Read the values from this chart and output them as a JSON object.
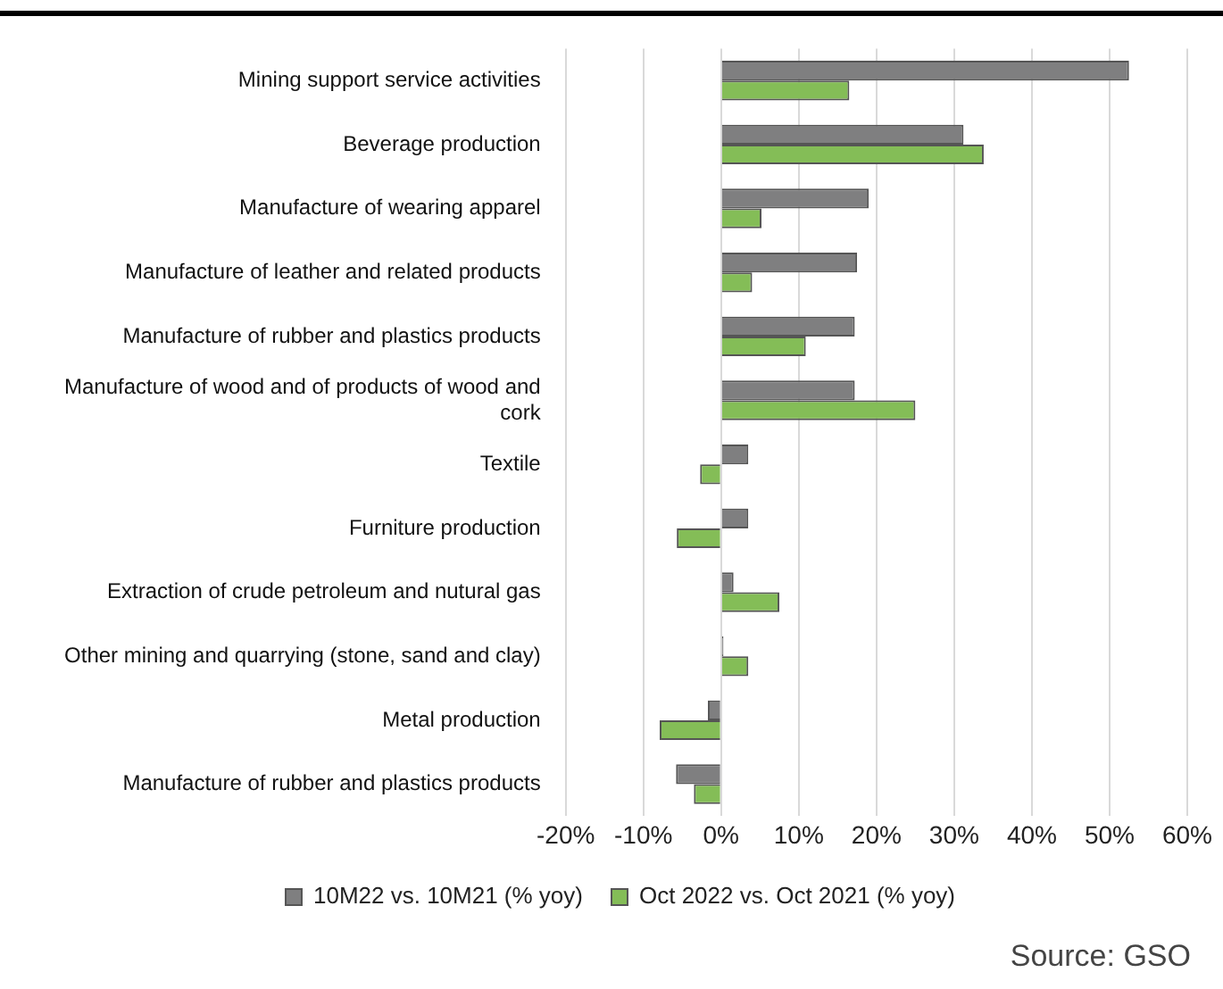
{
  "chart_data": {
    "type": "bar",
    "orientation": "horizontal",
    "categories": [
      "Mining support service activities",
      "Beverage production",
      "Manufacture of wearing apparel",
      "Manufacture of leather and related products",
      "Manufacture of rubber and plastics products",
      "Manufacture of wood and of products of wood and cork",
      "Textile",
      "Furniture production",
      "Extraction of crude petroleum and nutural gas",
      "Other mining and quarrying (stone, sand and clay)",
      "Metal production",
      "Manufacture of rubber and plastics products"
    ],
    "series": [
      {
        "name": "10M22 vs. 10M21 (% yoy)",
        "color": "#7f7f80",
        "values": [
          52.5,
          31.2,
          19,
          17.5,
          17.2,
          17.2,
          3.5,
          3.5,
          1.6,
          0.3,
          -1.7,
          -5.8
        ]
      },
      {
        "name": "Oct 2022 vs. Oct 2021 (% yoy)",
        "color": "#84bd57",
        "values": [
          16.5,
          33.8,
          5.2,
          4,
          10.9,
          25,
          -2.7,
          -5.7,
          7.5,
          3.5,
          -7.9,
          -3.5
        ]
      }
    ],
    "xlim": [
      -20,
      60
    ],
    "xticks": [
      {
        "value": -20,
        "label": "-20%"
      },
      {
        "value": -10,
        "label": "-10%"
      },
      {
        "value": 0,
        "label": "0%"
      },
      {
        "value": 10,
        "label": "10%"
      },
      {
        "value": 20,
        "label": "20%"
      },
      {
        "value": 30,
        "label": "30%"
      },
      {
        "value": 40,
        "label": "40%"
      },
      {
        "value": 50,
        "label": "50%"
      },
      {
        "value": 60,
        "label": "60%"
      }
    ],
    "grid": "x",
    "legend": "bottom",
    "annotations": [
      "Source: GSO"
    ]
  }
}
